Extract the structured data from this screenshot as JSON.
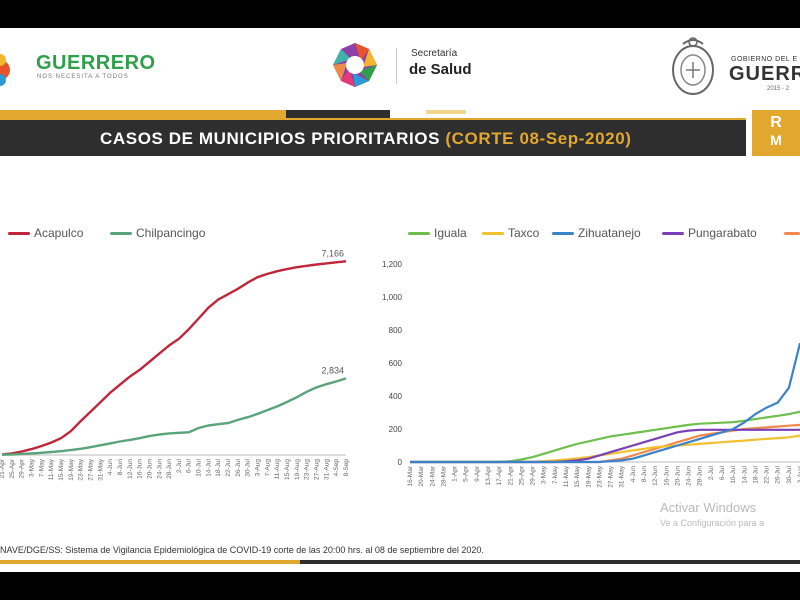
{
  "header": {
    "guerrero_logo": "GUERRERO",
    "guerrero_tagline": "NOS NECESITA A TODOS",
    "salud_top": "Secretaría",
    "salud_main": "de Salud",
    "gobierno_top": "GOBIERNO DEL E",
    "gobierno_main": "GUERRE",
    "gobierno_years": "2015 - 2"
  },
  "title": {
    "main": "CASOS DE MUNICIPIOS PRIORITARIOS",
    "cut": "(CORTE 08-Sep-2020)",
    "side_tab_1": "R",
    "side_tab_2": "M"
  },
  "colors": {
    "acapulco": "#c0263a",
    "chilpancingo": "#5aa47a",
    "iguala": "#6fbf4e",
    "taxco": "#f2c12e",
    "zihuatanejo": "#3a82c9",
    "pungarabato": "#7b3fb8",
    "other": "#f08a4b",
    "accent": "#e2a72e"
  },
  "footnote": "NAVE/DGE/SS: Sistema de Vigilancia Epidemiológica de COVID-19 corte de las 20:00 hrs. al 08 de septiembre del 2020.",
  "watermark": {
    "line1": "Activar Windows",
    "line2": "Ve a Configuración para a"
  },
  "chart_data": [
    {
      "type": "line",
      "x": [
        "21-Apr",
        "25-Apr",
        "29-Apr",
        "3-May",
        "7-May",
        "11-May",
        "15-May",
        "19-May",
        "23-May",
        "27-May",
        "31-May",
        "4-Jun",
        "8-Jun",
        "12-Jun",
        "16-Jun",
        "20-Jun",
        "24-Jun",
        "28-Jun",
        "2-Jul",
        "6-Jul",
        "10-Jul",
        "14-Jul",
        "18-Jul",
        "22-Jul",
        "26-Jul",
        "30-Jul",
        "3-Aug",
        "7-Aug",
        "11-Aug",
        "15-Aug",
        "19-Aug",
        "23-Aug",
        "27-Aug",
        "31-Aug",
        "4-Sep",
        "8-Sep"
      ],
      "series": [
        {
          "name": "Acapulco",
          "values": [
            20,
            60,
            130,
            220,
            330,
            460,
            620,
            880,
            1250,
            1600,
            1950,
            2300,
            2600,
            2900,
            3150,
            3450,
            3750,
            4050,
            4300,
            4650,
            5050,
            5450,
            5750,
            5950,
            6150,
            6380,
            6580,
            6700,
            6800,
            6880,
            6950,
            7000,
            7050,
            7090,
            7130,
            7166
          ]
        },
        {
          "name": "Chilpancingo",
          "values": [
            10,
            20,
            40,
            60,
            80,
            110,
            140,
            180,
            230,
            290,
            360,
            430,
            500,
            560,
            620,
            700,
            760,
            800,
            820,
            840,
            1000,
            1090,
            1140,
            1180,
            1300,
            1400,
            1520,
            1660,
            1800,
            1960,
            2140,
            2340,
            2500,
            2620,
            2720,
            2834
          ]
        }
      ],
      "data_labels": [
        "7,166",
        "2,834"
      ],
      "ylim": [
        0,
        7400
      ],
      "legend": "top-left"
    },
    {
      "type": "line",
      "x": [
        "16-Mar",
        "20-Mar",
        "24-Mar",
        "28-Mar",
        "1-Apr",
        "5-Apr",
        "9-Apr",
        "13-Apr",
        "17-Apr",
        "21-Apr",
        "25-Apr",
        "29-Apr",
        "3-May",
        "7-May",
        "11-May",
        "15-May",
        "19-May",
        "23-May",
        "27-May",
        "31-May",
        "4-Jun",
        "8-Jun",
        "12-Jun",
        "16-Jun",
        "20-Jun",
        "24-Jun",
        "28-Jun",
        "2-Jul",
        "6-Jul",
        "10-Jul",
        "14-Jul",
        "18-Jul",
        "22-Jul",
        "26-Jul",
        "30-Jul",
        "3-Aug"
      ],
      "series": [
        {
          "name": "Iguala",
          "values": [
            0,
            0,
            0,
            0,
            0,
            0,
            0,
            0,
            0,
            5,
            15,
            30,
            50,
            70,
            90,
            110,
            125,
            140,
            155,
            165,
            175,
            185,
            195,
            205,
            215,
            225,
            232,
            235,
            238,
            242,
            250,
            260,
            270,
            280,
            290,
            305
          ]
        },
        {
          "name": "Taxco",
          "values": [
            0,
            0,
            0,
            0,
            0,
            0,
            0,
            0,
            0,
            0,
            0,
            2,
            5,
            10,
            15,
            22,
            30,
            40,
            50,
            60,
            70,
            80,
            90,
            95,
            100,
            105,
            110,
            115,
            120,
            125,
            130,
            135,
            140,
            145,
            150,
            160
          ]
        },
        {
          "name": "Zihuatanejo",
          "values": [
            0,
            0,
            0,
            0,
            0,
            0,
            0,
            0,
            0,
            0,
            0,
            0,
            0,
            0,
            0,
            0,
            0,
            0,
            5,
            10,
            20,
            40,
            60,
            80,
            100,
            120,
            140,
            160,
            180,
            200,
            240,
            290,
            330,
            360,
            450,
            720
          ]
        },
        {
          "name": "Pungarabato",
          "values": [
            0,
            0,
            0,
            0,
            0,
            0,
            0,
            0,
            0,
            0,
            0,
            0,
            0,
            0,
            5,
            10,
            20,
            40,
            60,
            80,
            100,
            120,
            140,
            160,
            180,
            190,
            195,
            195,
            195,
            195,
            195,
            195,
            195,
            195,
            195,
            195
          ]
        },
        {
          "name": "",
          "values": [
            0,
            0,
            0,
            0,
            0,
            0,
            0,
            0,
            0,
            0,
            0,
            0,
            0,
            0,
            0,
            0,
            0,
            0,
            10,
            20,
            40,
            60,
            80,
            100,
            120,
            140,
            160,
            170,
            180,
            190,
            200,
            205,
            210,
            215,
            220,
            225
          ]
        }
      ],
      "yticks": [
        0,
        200,
        400,
        600,
        800,
        "1,000",
        "1,200"
      ],
      "ylim": [
        0,
        1250
      ],
      "legend": "top"
    }
  ]
}
